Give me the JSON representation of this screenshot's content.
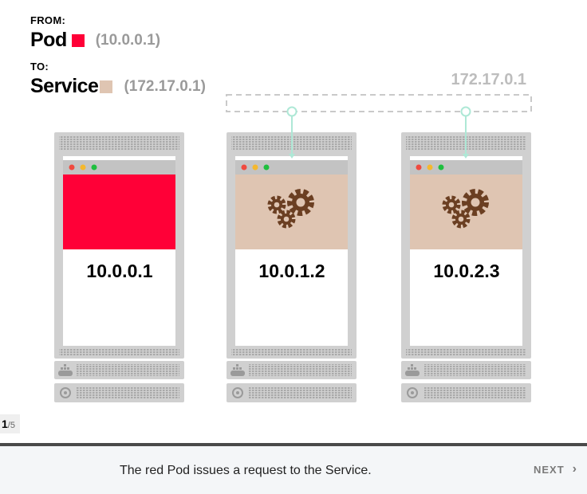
{
  "legend": {
    "from_label": "FROM:",
    "from_name": "Pod",
    "from_ip": "(10.0.0.1)",
    "from_color": "#ff0037",
    "to_label": "TO:",
    "to_name": "Service",
    "to_ip": "(172.17.0.1)",
    "to_color": "#dfc5b2"
  },
  "service": {
    "ip": "172.17.0.1"
  },
  "nodes": [
    {
      "pod_ip": "10.0.0.1",
      "pod_kind": "red-pod",
      "service_target": false
    },
    {
      "pod_ip": "10.0.1.2",
      "pod_kind": "gears-pod",
      "service_target": true
    },
    {
      "pod_ip": "10.0.2.3",
      "pod_kind": "gears-pod",
      "service_target": true
    }
  ],
  "pager": {
    "current": "1",
    "total": "/5"
  },
  "footer": {
    "caption": "The red Pod issues a request to the Service.",
    "next_label": "NEXT",
    "next_icon": "chevron-right-icon"
  },
  "colors": {
    "red_pod": "#ff0037",
    "beige_pod": "#dfc5b2",
    "gear": "#6b3f22",
    "link": "#aee8d6",
    "server": "#d0d0d0"
  }
}
